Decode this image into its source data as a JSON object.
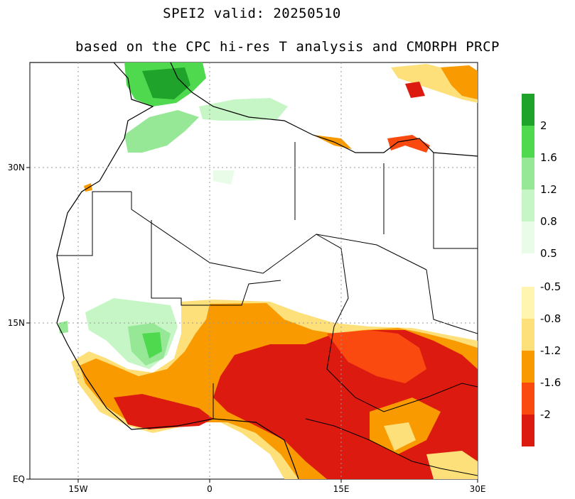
{
  "title": "SPEI2   valid: 20250510",
  "subtitle": "based on the CPC hi-res T analysis and CMORPH PRCP",
  "axes": {
    "x_ticks": [
      "15W",
      "0",
      "15E",
      "30E"
    ],
    "y_ticks": [
      "30N",
      "15N",
      "EQ"
    ]
  },
  "colorbar_wet": {
    "labels": [
      "2",
      "1.6",
      "1.2",
      "0.8",
      "0.5"
    ],
    "colors": [
      "#1fa32b",
      "#4fd94f",
      "#96e896",
      "#c6f5c6",
      "#e8fce8"
    ]
  },
  "colorbar_dry": {
    "labels": [
      "-0.5",
      "-0.8",
      "-1.2",
      "-1.6",
      "-2"
    ],
    "colors": [
      "#fff5b0",
      "#fde07a",
      "#f99a00",
      "#fb4a10",
      "#dc1a10"
    ]
  }
}
